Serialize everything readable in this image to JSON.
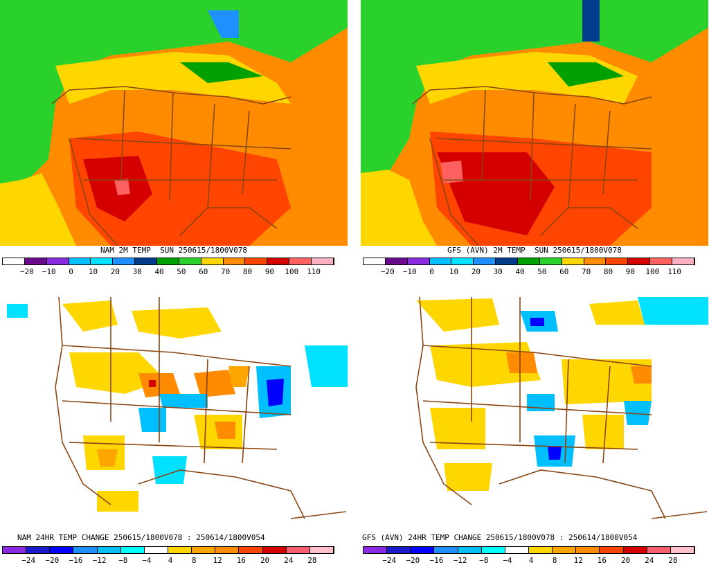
{
  "panels": {
    "nam_temp": {
      "caption": "NAM 2M TEMP  SUN 250615/1800V078",
      "scale_labels": [
        "−20",
        "−10",
        "0",
        "10",
        "20",
        "30",
        "40",
        "50",
        "60",
        "70",
        "80",
        "90",
        "100",
        "110"
      ]
    },
    "gfs_temp": {
      "caption": "GFS (AVN) 2M TEMP  SUN 250615/1800V078",
      "scale_labels": [
        "−20",
        "−10",
        "0",
        "10",
        "20",
        "30",
        "40",
        "50",
        "60",
        "70",
        "80",
        "90",
        "100",
        "110"
      ]
    },
    "nam_change": {
      "caption": "NAM 24HR TEMP CHANGE 250615/1800V078 : 250614/1800V054",
      "scale_labels": [
        "−24",
        "−20",
        "−16",
        "−12",
        "−8",
        "−4",
        "4",
        "8",
        "12",
        "16",
        "20",
        "24",
        "28"
      ]
    },
    "gfs_change": {
      "caption": "GFS (AVN) 24HR TEMP CHANGE 250615/1800V078 : 250614/1800V054",
      "scale_labels": [
        "−24",
        "−20",
        "−16",
        "−12",
        "−8",
        "−4",
        "4",
        "8",
        "12",
        "16",
        "20",
        "24",
        "28"
      ]
    }
  },
  "colors": {
    "temp_scale": [
      "#ffffff",
      "#6a0a8c",
      "#8a2be2",
      "#00bfff",
      "#00e0ff",
      "#1e90ff",
      "#003c8c",
      "#00a000",
      "#2bd12b",
      "#ffd700",
      "#ff8c00",
      "#ff4500",
      "#d40000",
      "#ff6060",
      "#ffb0c0"
    ],
    "change_scale": [
      "#8a2be2",
      "#1a1acc",
      "#0000ff",
      "#1e90ff",
      "#00bfff",
      "#00ffff",
      "#ffffff",
      "#ffd700",
      "#ffa500",
      "#ff8c00",
      "#ff4500",
      "#d40000",
      "#ff6070",
      "#ffc0cb"
    ],
    "borders": "#8b4513"
  }
}
